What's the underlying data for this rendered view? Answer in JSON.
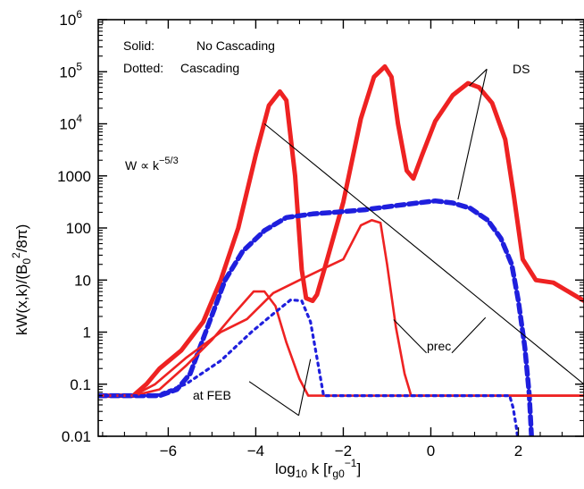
{
  "chart_data": {
    "type": "line",
    "xlabel": "log10 k [rg0−1]",
    "xlabel_parts": {
      "main": "log",
      "sub1": "10",
      "k": " k [r",
      "sub2": "g0",
      "sup": "−1",
      "close": "]"
    },
    "ylabel": "kW(x,k)/(B0²/8π)",
    "ylabel_parts": {
      "main": "kW(x,k)/(B",
      "sub": "0",
      "sup": "2",
      "close": "/8π)"
    },
    "xlim": [
      -7.6,
      3.5
    ],
    "ylim_log10": [
      -2,
      6
    ],
    "yscale": "log",
    "x_ticks": [
      {
        "v": -6,
        "label": "−6"
      },
      {
        "v": -4,
        "label": "−4"
      },
      {
        "v": -2,
        "label": "−2"
      },
      {
        "v": 0,
        "label": "0"
      },
      {
        "v": 2,
        "label": "2"
      }
    ],
    "y_ticks": [
      {
        "e": -2,
        "label": "0.01",
        "kind": "plain"
      },
      {
        "e": -1,
        "label": "0.1",
        "kind": "plain"
      },
      {
        "e": 0,
        "label": "1",
        "kind": "plain"
      },
      {
        "e": 1,
        "label": "10",
        "kind": "plain"
      },
      {
        "e": 2,
        "label": "100",
        "kind": "plain"
      },
      {
        "e": 3,
        "label": "1000",
        "kind": "plain"
      },
      {
        "e": 4,
        "label": "10",
        "sup": "4",
        "kind": "pow"
      },
      {
        "e": 5,
        "label": "10",
        "sup": "5",
        "kind": "pow"
      },
      {
        "e": 6,
        "label": "10",
        "sup": "6",
        "kind": "pow"
      }
    ],
    "legend": [
      {
        "label": "Solid:",
        "value": "No Cascading"
      },
      {
        "label": "Dotted:",
        "value": "Cascading"
      }
    ],
    "annotations": {
      "ds": "DS",
      "prec": "prec",
      "at_feb": "at FEB",
      "powerlaw": {
        "base": "W ∝ k",
        "sup": "−5/3"
      }
    },
    "colors": {
      "red": "#ee2222",
      "blue": "#1f1fdd",
      "black": "#000000"
    },
    "series": [
      {
        "style": "solid-thick",
        "color": "#ee2222",
        "points": [
          [
            -7.6,
            -1.22
          ],
          [
            -6.8,
            -1.22
          ],
          [
            -6.5,
            -1.0
          ],
          [
            -6.2,
            -0.7
          ],
          [
            -5.7,
            -0.35
          ],
          [
            -5.2,
            0.2
          ],
          [
            -4.8,
            1.0
          ],
          [
            -4.4,
            2.0
          ],
          [
            -4.0,
            3.4
          ],
          [
            -3.7,
            4.35
          ],
          [
            -3.45,
            4.62
          ],
          [
            -3.3,
            4.45
          ],
          [
            -3.1,
            3.0
          ],
          [
            -2.95,
            1.2
          ],
          [
            -2.85,
            0.65
          ],
          [
            -2.7,
            0.6
          ],
          [
            -2.6,
            0.72
          ],
          [
            -2.4,
            1.3
          ],
          [
            -2.0,
            2.5
          ],
          [
            -1.6,
            4.1
          ],
          [
            -1.3,
            4.9
          ],
          [
            -1.05,
            5.1
          ],
          [
            -0.9,
            4.9
          ],
          [
            -0.75,
            4.0
          ],
          [
            -0.55,
            3.1
          ],
          [
            -0.4,
            2.95
          ],
          [
            -0.2,
            3.4
          ],
          [
            0.1,
            4.05
          ],
          [
            0.5,
            4.55
          ],
          [
            0.85,
            4.78
          ],
          [
            1.1,
            4.7
          ],
          [
            1.4,
            4.4
          ],
          [
            1.7,
            3.7
          ],
          [
            1.9,
            2.6
          ],
          [
            2.1,
            1.4
          ],
          [
            2.4,
            1.0
          ],
          [
            2.8,
            0.95
          ],
          [
            3.2,
            0.75
          ],
          [
            3.5,
            0.6
          ]
        ]
      },
      {
        "style": "dashed-thick",
        "color": "#1f1fdd",
        "points": [
          [
            -7.6,
            -1.22
          ],
          [
            -6.8,
            -1.22
          ],
          [
            -6.2,
            -1.22
          ],
          [
            -5.8,
            -1.1
          ],
          [
            -5.5,
            -0.8
          ],
          [
            -5.1,
            0.1
          ],
          [
            -4.7,
            1.0
          ],
          [
            -4.3,
            1.55
          ],
          [
            -3.8,
            1.95
          ],
          [
            -3.3,
            2.2
          ],
          [
            -2.7,
            2.27
          ],
          [
            -2.2,
            2.3
          ],
          [
            -1.5,
            2.35
          ],
          [
            -0.8,
            2.43
          ],
          [
            -0.3,
            2.48
          ],
          [
            0.1,
            2.52
          ],
          [
            0.5,
            2.48
          ],
          [
            0.9,
            2.38
          ],
          [
            1.3,
            2.15
          ],
          [
            1.6,
            1.8
          ],
          [
            1.85,
            1.3
          ],
          [
            2.0,
            0.6
          ],
          [
            2.15,
            -0.3
          ],
          [
            2.25,
            -1.2
          ],
          [
            2.3,
            -2.0
          ]
        ]
      },
      {
        "style": "solid-thin",
        "color": "#ee2222",
        "points": [
          [
            -7.6,
            -1.22
          ],
          [
            -6.8,
            -1.22
          ],
          [
            -6.3,
            -1.0
          ],
          [
            -5.6,
            -0.5
          ],
          [
            -4.8,
            0.0
          ],
          [
            -4.2,
            0.25
          ],
          [
            -3.6,
            0.75
          ],
          [
            -3.0,
            1.0
          ],
          [
            -2.5,
            1.2
          ],
          [
            -2.0,
            1.4
          ],
          [
            -1.6,
            2.05
          ],
          [
            -1.35,
            2.15
          ],
          [
            -1.15,
            2.1
          ],
          [
            -1.0,
            1.3
          ],
          [
            -0.8,
            0.1
          ],
          [
            -0.6,
            -0.8
          ],
          [
            -0.45,
            -1.22
          ],
          [
            3.5,
            -1.22
          ]
        ]
      },
      {
        "style": "solid-thin",
        "color": "#ee2222",
        "points": [
          [
            -7.6,
            -1.22
          ],
          [
            -6.8,
            -1.22
          ],
          [
            -6.2,
            -1.1
          ],
          [
            -5.6,
            -0.65
          ],
          [
            -5.0,
            -0.15
          ],
          [
            -4.5,
            0.35
          ],
          [
            -4.05,
            0.78
          ],
          [
            -3.8,
            0.78
          ],
          [
            -3.55,
            0.5
          ],
          [
            -3.3,
            -0.2
          ],
          [
            -3.0,
            -0.9
          ],
          [
            -2.8,
            -1.22
          ],
          [
            3.5,
            -1.22
          ]
        ]
      },
      {
        "style": "dotted",
        "color": "#1f1fdd",
        "points": [
          [
            -7.6,
            -1.22
          ],
          [
            -6.3,
            -1.22
          ],
          [
            -5.6,
            -1.0
          ],
          [
            -4.8,
            -0.55
          ],
          [
            -4.1,
            0.0
          ],
          [
            -3.6,
            0.35
          ],
          [
            -3.2,
            0.62
          ],
          [
            -2.95,
            0.6
          ],
          [
            -2.75,
            0.2
          ],
          [
            -2.6,
            -0.5
          ],
          [
            -2.45,
            -1.22
          ],
          [
            1.8,
            -1.22
          ],
          [
            1.88,
            -1.45
          ],
          [
            1.95,
            -1.8
          ],
          [
            1.98,
            -2.0
          ]
        ]
      }
    ],
    "lines": [
      {
        "name": "powerlaw",
        "points": [
          [
            -3.8,
            4.0
          ],
          [
            3.5,
            -1.0
          ]
        ]
      },
      {
        "name": "ds-pointer-1",
        "points": [
          [
            1.28,
            5.05
          ],
          [
            0.88,
            4.73
          ]
        ]
      },
      {
        "name": "ds-pointer-2",
        "points": [
          [
            1.28,
            5.05
          ],
          [
            0.62,
            2.55
          ]
        ]
      },
      {
        "name": "prec-pointer-1",
        "points": [
          [
            -0.1,
            -0.4
          ],
          [
            -0.85,
            0.24
          ]
        ]
      },
      {
        "name": "prec-pointer-2",
        "points": [
          [
            0.48,
            -0.4
          ],
          [
            1.25,
            0.28
          ]
        ]
      },
      {
        "name": "feb-pointer-1",
        "points": [
          [
            -3.02,
            -1.6
          ],
          [
            -4.15,
            -0.95
          ]
        ]
      },
      {
        "name": "feb-pointer-2",
        "points": [
          [
            -3.02,
            -1.6
          ],
          [
            -2.75,
            -0.52
          ]
        ]
      }
    ]
  }
}
